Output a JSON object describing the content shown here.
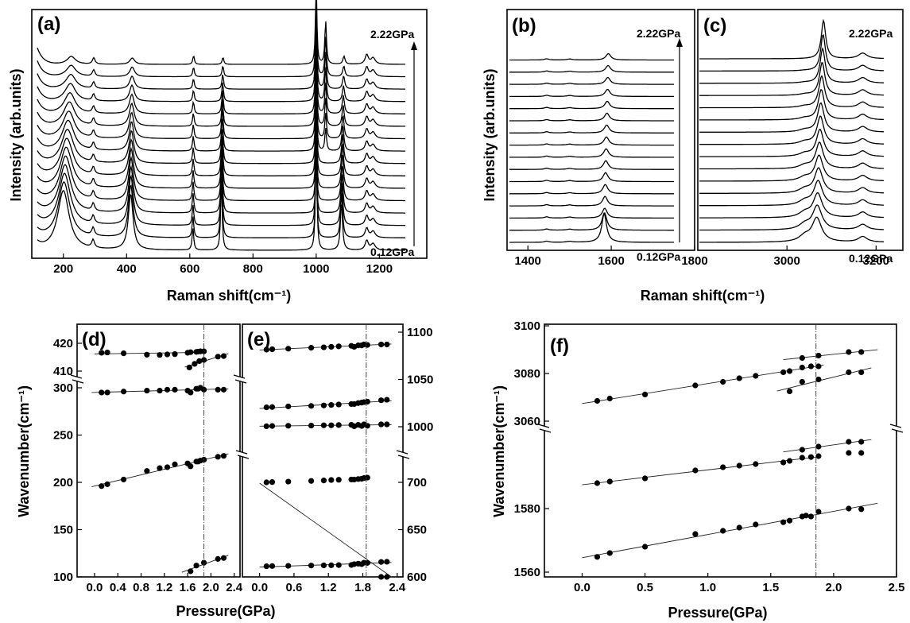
{
  "chart_data": [
    {
      "panel": "a",
      "type": "line",
      "title": "",
      "xlabel": "Raman shift(cm⁻¹)",
      "ylabel": "Intensity (arb.units)",
      "xlim": [
        100,
        1350
      ],
      "xticks": [
        200,
        400,
        600,
        800,
        1000,
        1200
      ],
      "spectra_count": 16,
      "pressure_low": "0.12GPa",
      "pressure_high": "2.22GPa",
      "peaks_cm1": [
        200,
        294,
        413,
        610,
        700,
        1000,
        1080,
        1160
      ],
      "peaks_high_pressure_cm1": [
        225,
        296,
        418,
        612,
        705,
        1000,
        1030,
        1088,
        1180
      ]
    },
    {
      "panel": "b",
      "type": "line",
      "xlabel": "Raman shift(cm⁻¹)",
      "xlim": [
        1350,
        1800
      ],
      "xticks": [
        1400,
        1600,
        1800
      ],
      "spectra_count": 16,
      "pressure_low": "0.12GPa",
      "pressure_high": "2.22GPa",
      "peaks_cm1": [
        1585
      ]
    },
    {
      "panel": "c",
      "type": "line",
      "xlim": [
        2800,
        3260
      ],
      "xticks": [
        3000,
        3200
      ],
      "spectra_count": 16,
      "pressure_low": "0.12GPa",
      "pressure_high": "2.22GPa",
      "peaks_cm1": [
        3068,
        3085,
        3170
      ]
    },
    {
      "panel": "d",
      "type": "scatter",
      "xlabel": "Pressure(GPa)",
      "ylabel": "Wavenumber(cm⁻¹)",
      "xlim": [
        -0.3,
        2.5
      ],
      "xticks": [
        "0.0",
        "0.4",
        "0.8",
        "1.2",
        "1.6",
        "2.0",
        "2.4"
      ],
      "y_upper_ticks": [
        410,
        420
      ],
      "y_lower_ticks": [
        100,
        150,
        200,
        250,
        300
      ],
      "transition_pressure": 1.88,
      "series": [
        {
          "x": [
            0.12,
            0.22,
            0.5,
            0.9,
            1.12,
            1.25,
            1.38,
            1.6,
            1.65,
            1.75,
            1.78,
            1.82,
            1.88
          ],
          "y": [
            416.6,
            416.7,
            416.4,
            415.9,
            415.8,
            416.0,
            416.1,
            416.6,
            416.8,
            416.9,
            417.0,
            417.1,
            417.1
          ]
        },
        {
          "x": [
            1.63,
            1.72,
            1.8,
            1.88,
            2.12,
            2.22
          ],
          "y": [
            411.3,
            412.6,
            413.6,
            414.0,
            415.2,
            415.4
          ]
        },
        {
          "x": [
            0.12,
            0.22,
            0.5,
            0.9,
            1.12,
            1.25,
            1.38,
            1.6,
            1.65,
            1.75,
            1.78,
            1.82,
            1.88,
            2.12,
            2.22
          ],
          "y": [
            295,
            295,
            296,
            297,
            297,
            298,
            298,
            297,
            295,
            299,
            299,
            300,
            298,
            298,
            298
          ]
        },
        {
          "x": [
            0.12,
            0.22,
            0.5,
            0.9,
            1.12,
            1.25,
            1.38,
            1.6,
            1.65,
            1.75,
            1.78,
            1.82,
            1.88,
            2.12,
            2.22
          ],
          "y": [
            196,
            198,
            203,
            212,
            215,
            216,
            219,
            220,
            217,
            222,
            222,
            223,
            224,
            227,
            228
          ]
        },
        {
          "x": [
            1.65,
            1.75,
            1.88,
            2.12,
            2.22
          ],
          "y": [
            106,
            112,
            115,
            119,
            120
          ]
        }
      ]
    },
    {
      "panel": "e",
      "type": "scatter",
      "xlim": [
        -0.3,
        2.5
      ],
      "xticks": [
        "0.0",
        "0.6",
        "1.2",
        "1.8",
        "2.4"
      ],
      "y_upper_ticks": [
        1000,
        1050,
        1100
      ],
      "y_lower_ticks": [
        600,
        650,
        700
      ],
      "transition_pressure": 1.86,
      "series": [
        {
          "x": [
            0.12,
            0.22,
            0.5,
            0.9,
            1.12,
            1.25,
            1.38,
            1.6,
            1.65,
            1.72,
            1.78,
            1.82,
            1.88,
            2.12,
            2.22
          ],
          "y": [
            1081.5,
            1082,
            1082.5,
            1083.5,
            1084,
            1084.5,
            1085,
            1085.5,
            1084.5,
            1086,
            1086,
            1087,
            1086.5,
            1087,
            1087
          ]
        },
        {
          "x": [
            0.12,
            0.22,
            0.5,
            0.9,
            1.12,
            1.25,
            1.38,
            1.6,
            1.65,
            1.72,
            1.78,
            1.82,
            1.88,
            2.12,
            2.22
          ],
          "y": [
            1020.5,
            1020.8,
            1021.5,
            1022,
            1022.5,
            1023,
            1023.5,
            1024,
            1024,
            1025,
            1025.5,
            1026,
            1026.5,
            1028,
            1028.5
          ]
        },
        {
          "x": [
            0.12,
            0.22,
            0.5,
            0.9,
            1.12,
            1.25,
            1.38,
            1.6,
            1.65,
            1.72,
            1.78,
            1.82,
            1.88,
            2.12,
            2.22
          ],
          "y": [
            1000.5,
            1000.8,
            1001,
            1001.2,
            1001.5,
            1001.5,
            1001.8,
            1002,
            1000.5,
            1002,
            1000.8,
            1002.5,
            1001,
            1002.5,
            1002.5
          ]
        },
        {
          "x": [
            0.12,
            0.22,
            0.5,
            0.9,
            1.12,
            1.25,
            1.38,
            1.6,
            1.65,
            1.72,
            1.78,
            1.82,
            1.88,
            2.12,
            2.22
          ],
          "y": [
            700,
            700.3,
            700.8,
            701.5,
            702,
            702.5,
            702.7,
            703,
            703,
            703.5,
            703.8,
            704.5,
            705,
            706,
            706.5
          ]
        },
        {
          "x": [
            0.12,
            0.22,
            0.5,
            0.9,
            1.12,
            1.25,
            1.38,
            1.6,
            1.65,
            1.72,
            1.78,
            1.82,
            1.88,
            2.12,
            2.22
          ],
          "y": [
            611.3,
            611.5,
            611.7,
            612,
            612.2,
            612.3,
            612.5,
            612.6,
            613.5,
            614,
            613.5,
            615,
            614.8,
            615.8,
            616
          ]
        }
      ]
    },
    {
      "panel": "f",
      "type": "scatter",
      "xlabel": "Pressure(GPa)",
      "ylabel": "Wavenumber(cm⁻¹)",
      "xlim": [
        -0.3,
        2.5
      ],
      "xticks": [
        "0.0",
        "0.5",
        "1.0",
        "1.5",
        "2.0",
        "2.5"
      ],
      "y_upper_ticks": [
        3060,
        3080,
        3100
      ],
      "y_lower_ticks": [
        1560,
        1580
      ],
      "transition_pressure": 1.86,
      "series": [
        {
          "x": [
            1.75,
            1.88,
            2.12,
            2.22
          ],
          "y": [
            3086.5,
            3087.5,
            3089,
            3089
          ]
        },
        {
          "x": [
            0.12,
            0.22,
            0.5,
            0.9,
            1.12,
            1.25,
            1.38,
            1.6,
            1.65,
            1.75,
            1.82,
            1.88
          ],
          "y": [
            3068.5,
            3069.5,
            3071.2,
            3075,
            3076.5,
            3078,
            3079,
            3080.5,
            3081,
            3082.5,
            3083,
            3083
          ]
        },
        {
          "x": [
            1.65,
            1.75,
            1.88,
            2.12,
            2.22
          ],
          "y": [
            3072.5,
            3076.5,
            3077.5,
            3080.5,
            3080.5
          ]
        },
        {
          "x": [
            0.12,
            0.22,
            0.5,
            0.9,
            1.12,
            1.25,
            1.38,
            1.6,
            1.65,
            1.75,
            1.82,
            1.88,
            2.12,
            2.22
          ],
          "y": [
            1588,
            1588.5,
            1589.5,
            1592,
            1593,
            1593.5,
            1594,
            1594.5,
            1595,
            1596,
            1596.2,
            1596.5,
            1597.5,
            1597.5
          ]
        },
        {
          "x": [
            1.75,
            1.88,
            2.12,
            2.22
          ],
          "y": [
            1598.5,
            1599.5,
            1601,
            1601
          ]
        },
        {
          "x": [
            0.12,
            0.22,
            0.5,
            0.9,
            1.12,
            1.25,
            1.38,
            1.6,
            1.65,
            1.75,
            1.78,
            1.82,
            1.88,
            2.12,
            2.22
          ],
          "y": [
            1564.8,
            1566,
            1568,
            1572,
            1573,
            1574,
            1575,
            1575.7,
            1576.2,
            1577.5,
            1577.8,
            1577.5,
            1579,
            1580,
            1579.8
          ]
        }
      ]
    }
  ],
  "labels": {
    "a": "(a)",
    "b": "(b)",
    "c": "(c)",
    "d": "(d)",
    "e": "(e)",
    "f": "(f)",
    "p_high": "2.22GPa",
    "p_low": "0.12GPa",
    "raman_x": "Raman shift(cm⁻¹)",
    "intensity_y": "Intensity (arb.units)",
    "pressure_x": "Pressure(GPa)",
    "wavenumber_y": "Wavenumber(cm⁻¹)"
  }
}
